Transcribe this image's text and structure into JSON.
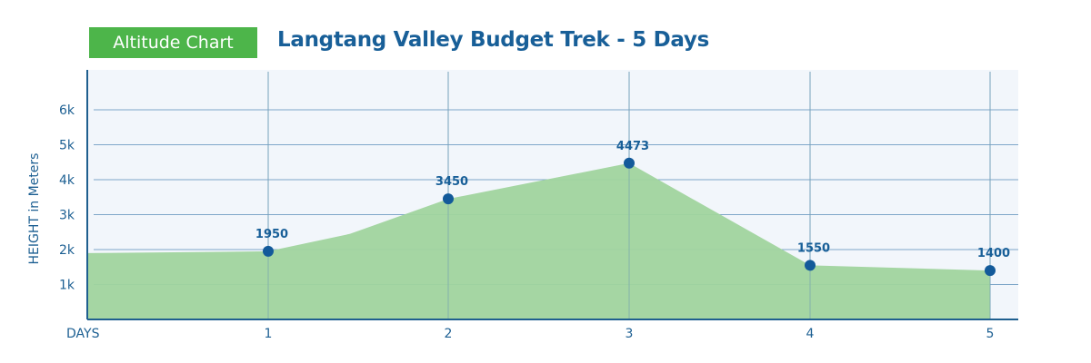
{
  "header": {
    "badge": "Altitude Chart",
    "title": "Langtang Valley Budget Trek - 5 Days"
  },
  "colors": {
    "badge_bg": "#4db54a",
    "title": "#185f98",
    "area_fill": "#a0d49e",
    "point": "#135a9a",
    "panel_bg": "#f2f6fb",
    "grid": "#7fa7c9"
  },
  "chart_data": {
    "type": "area",
    "title": "Langtang Valley Budget Trek - 5 Days",
    "xlabel": "DAYS",
    "ylabel": "HEIGHT in Meters",
    "categories": [
      "1",
      "2",
      "3",
      "4",
      "5"
    ],
    "values": [
      1950,
      3450,
      4473,
      1550,
      1400
    ],
    "y_ticks": [
      "1k",
      "2k",
      "3k",
      "4k",
      "5k",
      "6k"
    ],
    "ylim": [
      0,
      7000
    ],
    "grid": true,
    "legend": null
  }
}
